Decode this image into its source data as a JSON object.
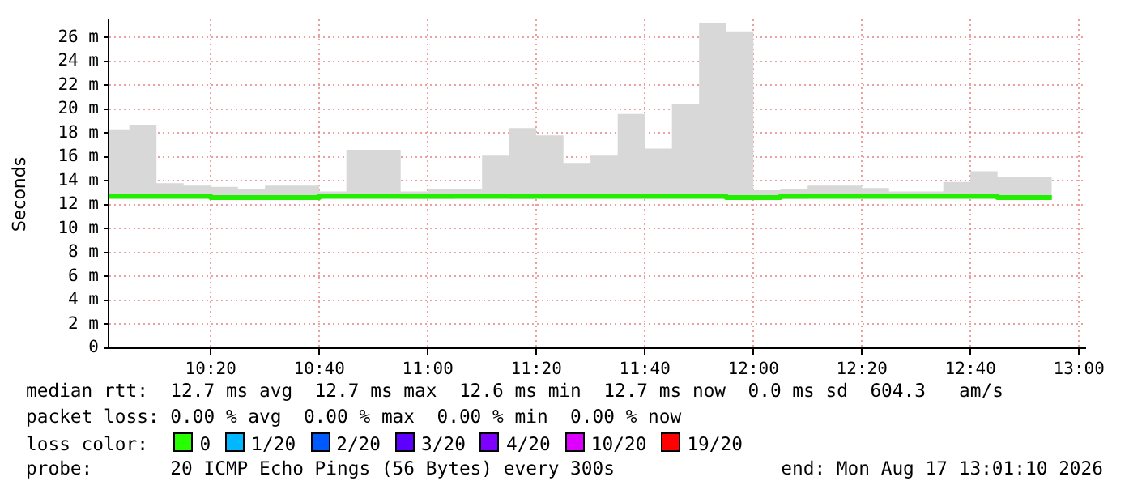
{
  "chart_data": {
    "type": "step",
    "ylabel": "Seconds",
    "x": [
      10.0194,
      10.0833,
      10.1667,
      10.25,
      10.3333,
      10.4167,
      10.5,
      10.5833,
      10.6667,
      10.75,
      10.8333,
      10.9167,
      11.0,
      11.0833,
      11.1667,
      11.25,
      11.3333,
      11.4167,
      11.5,
      11.5833,
      11.6667,
      11.75,
      11.8333,
      11.9167,
      12.0,
      12.0833,
      12.1667,
      12.25,
      12.3333,
      12.4167,
      12.5,
      12.5833,
      12.6667,
      12.75,
      12.8333,
      12.9167
    ],
    "series": [
      {
        "color": "#22ee00",
        "values": [
          12.6,
          12.7,
          12.7,
          12.7,
          12.7,
          12.6,
          12.6,
          12.6,
          12.6,
          12.7,
          12.7,
          12.7,
          12.7,
          12.7,
          12.7,
          12.7,
          12.7,
          12.7,
          12.7,
          12.7,
          12.7,
          12.7,
          12.7,
          12.7,
          12.6,
          12.6,
          12.7,
          12.7,
          12.7,
          12.7,
          12.7,
          12.7,
          12.7,
          12.7,
          12.6,
          12.6
        ],
        "lower": [
          12.5,
          12.6,
          12.6,
          12.6,
          12.6,
          12.5,
          12.5,
          12.5,
          12.5,
          12.6,
          12.6,
          12.6,
          12.5,
          12.5,
          12.6,
          12.6,
          12.5,
          12.6,
          12.6,
          12.6,
          12.6,
          12.6,
          12.6,
          12.6,
          12.5,
          12.5,
          12.5,
          12.6,
          12.6,
          12.6,
          12.6,
          12.6,
          12.6,
          12.6,
          12.5,
          12.5
        ],
        "upper": [
          13.1,
          18.3,
          18.7,
          13.8,
          13.6,
          13.5,
          13.3,
          13.6,
          13.6,
          13.1,
          16.6,
          16.6,
          13.1,
          13.3,
          13.3,
          16.1,
          18.4,
          17.8,
          15.5,
          16.1,
          19.6,
          16.7,
          20.4,
          27.2,
          26.5,
          13.2,
          13.3,
          13.6,
          13.6,
          13.4,
          13.1,
          13.1,
          13.9,
          14.8,
          14.3,
          14.3
        ]
      }
    ],
    "xlim": [
      10.0194,
      13.0194
    ],
    "xticks": [
      {
        "value": 10.3333,
        "label": "10:20"
      },
      {
        "value": 10.6667,
        "label": "10:40"
      },
      {
        "value": 11,
        "label": "11:00"
      },
      {
        "value": 11.3333,
        "label": "11:20"
      },
      {
        "value": 11.6667,
        "label": "11:40"
      },
      {
        "value": 12,
        "label": "12:00"
      },
      {
        "value": 12.3333,
        "label": "12:20"
      },
      {
        "value": 12.6667,
        "label": "12:40"
      },
      {
        "value": 13,
        "label": "13:00"
      }
    ],
    "ylim": [
      0,
      27.5
    ],
    "yticks": [
      0,
      {
        "value": 2,
        "label": "2 m"
      },
      {
        "value": 4,
        "label": "4 m"
      },
      {
        "value": 6,
        "label": "6 m"
      },
      {
        "value": 8,
        "label": "8 m"
      },
      {
        "value": 10,
        "label": "10 m"
      },
      {
        "value": 12,
        "label": "12 m"
      },
      {
        "value": 14,
        "label": "14 m"
      },
      {
        "value": 16,
        "label": "16 m"
      },
      {
        "value": 18,
        "label": "18 m"
      },
      {
        "value": 20,
        "label": "20 m"
      },
      {
        "value": 22,
        "label": "22 m"
      },
      {
        "value": 24,
        "label": "24 m"
      },
      {
        "value": 26,
        "label": "26 m"
      }
    ],
    "grid": true,
    "legend": false,
    "marker": "none",
    "line_style": "solid",
    "annotations": [
      "median rtt:  12.7 ms avg  12.7 ms max  12.6 ms min  12.7 ms now  0.0 ms sd  604.3   am/s",
      "packet loss: 0.00 % avg  0.00 % max  0.00 % min  0.00 % now",
      "loss color:",
      "0",
      "1/20",
      "2/20",
      "3/20",
      "4/20",
      "10/20",
      "19/20",
      "probe:       20 ICMP Echo Pings (56 Bytes) every 300s",
      "end: Mon Aug 17 13:01:10 2026"
    ]
  }
}
